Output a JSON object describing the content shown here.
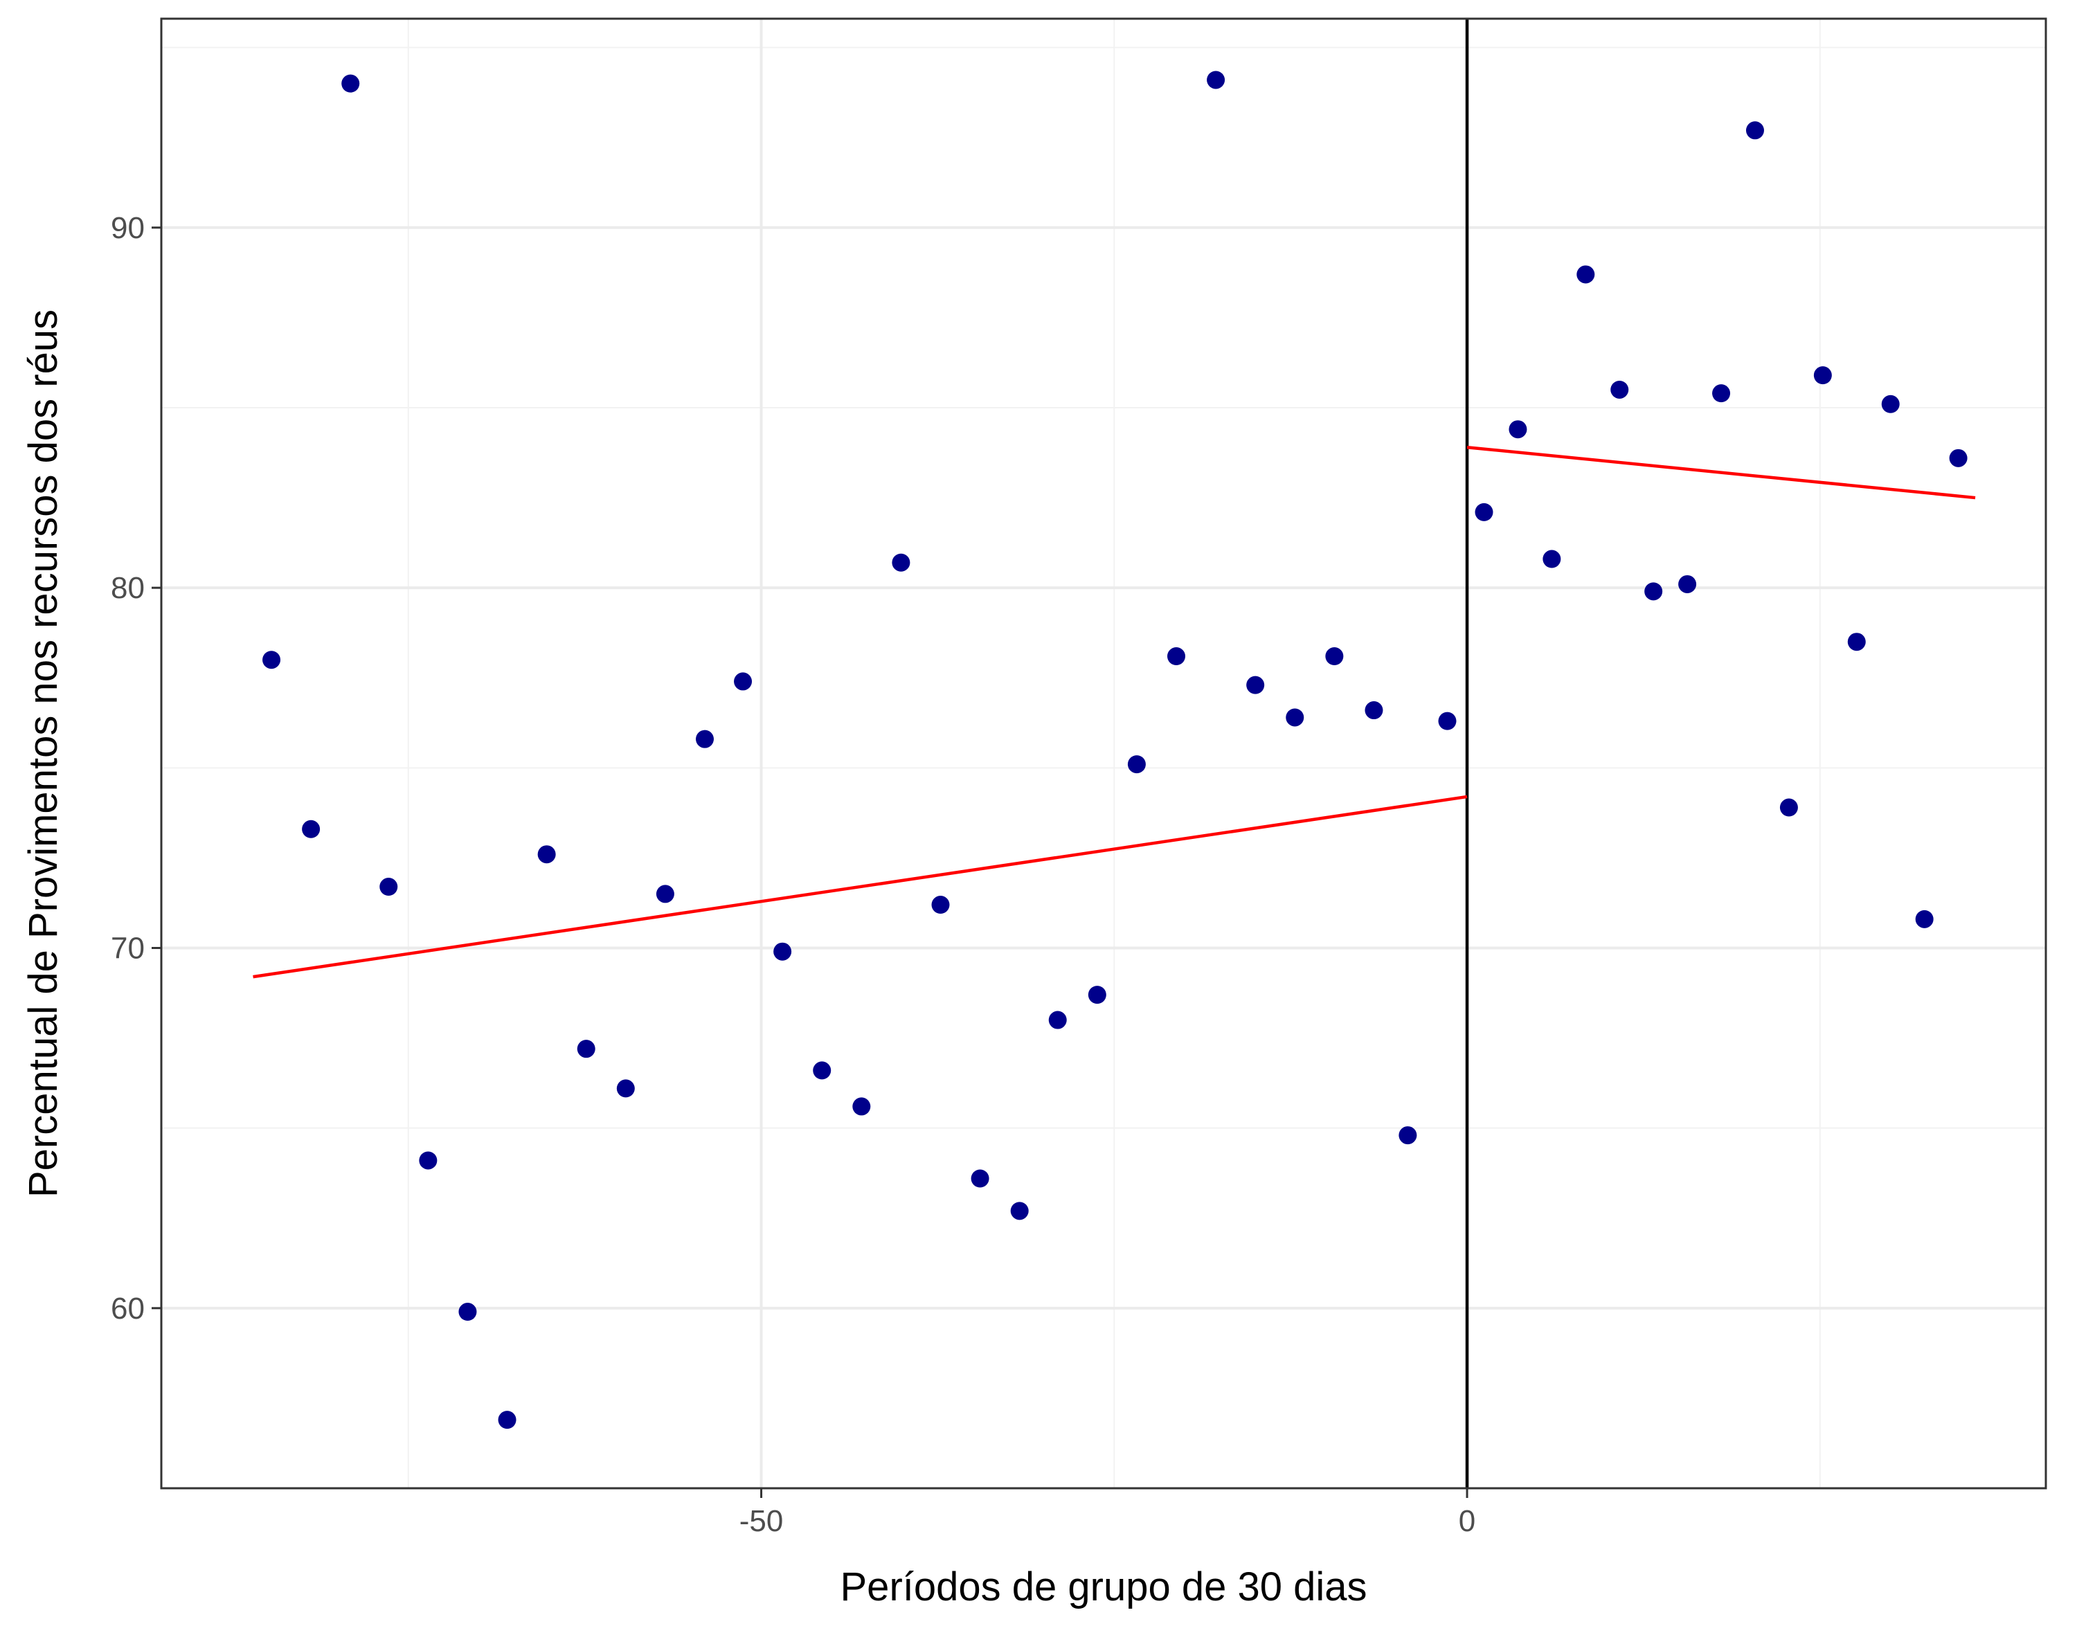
{
  "chart_data": {
    "type": "scatter",
    "xlabel": "Períodos de grupo de 30  dias",
    "ylabel": "Percentual de Provimentos nos recursos dos réus",
    "xlim": [
      -92.5,
      41
    ],
    "ylim": [
      55,
      95.8
    ],
    "x_ticks": [
      -50,
      0
    ],
    "y_ticks": [
      60,
      70,
      80,
      90
    ],
    "x_tick_labels": [
      "-50",
      "0"
    ],
    "y_tick_labels": [
      "60",
      "70",
      "80",
      "90"
    ],
    "grid": true,
    "cutoff_x": 0,
    "colors": {
      "points": "#00008b",
      "fit_lines": "#ff0000",
      "cutoff_line": "#000000",
      "grid": "#ebebeb",
      "border": "#333333"
    },
    "points": [
      {
        "x": -84.7,
        "y": 78.0
      },
      {
        "x": -81.9,
        "y": 73.3
      },
      {
        "x": -79.1,
        "y": 94.0
      },
      {
        "x": -76.4,
        "y": 71.7
      },
      {
        "x": -73.6,
        "y": 64.1
      },
      {
        "x": -70.8,
        "y": 59.9
      },
      {
        "x": -68.0,
        "y": 56.9
      },
      {
        "x": -65.2,
        "y": 72.6
      },
      {
        "x": -62.4,
        "y": 67.2
      },
      {
        "x": -59.6,
        "y": 66.1
      },
      {
        "x": -56.8,
        "y": 71.5
      },
      {
        "x": -54.0,
        "y": 75.8
      },
      {
        "x": -51.3,
        "y": 77.4
      },
      {
        "x": -48.5,
        "y": 69.9
      },
      {
        "x": -45.7,
        "y": 66.6
      },
      {
        "x": -42.9,
        "y": 65.6
      },
      {
        "x": -40.1,
        "y": 80.7
      },
      {
        "x": -37.3,
        "y": 71.2
      },
      {
        "x": -34.5,
        "y": 63.6
      },
      {
        "x": -31.7,
        "y": 62.7
      },
      {
        "x": -29.0,
        "y": 68.0
      },
      {
        "x": -26.2,
        "y": 68.7
      },
      {
        "x": -23.4,
        "y": 75.1
      },
      {
        "x": -20.6,
        "y": 78.1
      },
      {
        "x": -17.8,
        "y": 94.1
      },
      {
        "x": -15.0,
        "y": 77.3
      },
      {
        "x": -12.2,
        "y": 76.4
      },
      {
        "x": -9.4,
        "y": 78.1
      },
      {
        "x": -6.6,
        "y": 76.6
      },
      {
        "x": -4.2,
        "y": 64.8
      },
      {
        "x": -1.4,
        "y": 76.3
      },
      {
        "x": 1.2,
        "y": 82.1
      },
      {
        "x": 3.6,
        "y": 84.4
      },
      {
        "x": 6.0,
        "y": 80.8
      },
      {
        "x": 8.4,
        "y": 88.7
      },
      {
        "x": 10.8,
        "y": 85.5
      },
      {
        "x": 13.2,
        "y": 79.9
      },
      {
        "x": 15.6,
        "y": 80.1
      },
      {
        "x": 18.0,
        "y": 85.4
      },
      {
        "x": 20.4,
        "y": 92.7
      },
      {
        "x": 22.8,
        "y": 73.9
      },
      {
        "x": 25.2,
        "y": 85.9
      },
      {
        "x": 27.6,
        "y": 78.5
      },
      {
        "x": 30.0,
        "y": 85.1
      },
      {
        "x": 32.4,
        "y": 70.8
      },
      {
        "x": 34.8,
        "y": 83.6
      }
    ],
    "fit_lines": [
      {
        "x": [
          -86.0,
          0
        ],
        "y": [
          69.2,
          74.2
        ]
      },
      {
        "x": [
          0,
          36.0
        ],
        "y": [
          83.9,
          82.5
        ]
      }
    ]
  }
}
